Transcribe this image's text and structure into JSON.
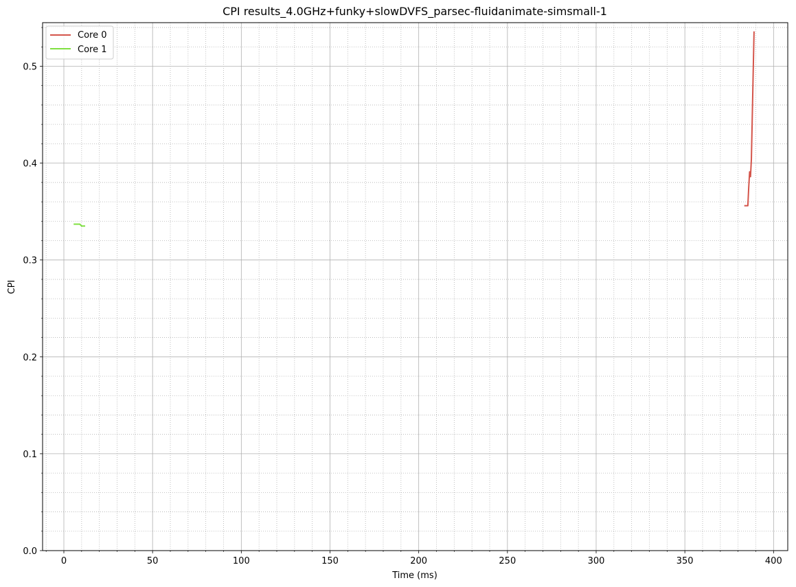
{
  "chart_data": {
    "type": "line",
    "title": "CPI results_4.0GHz+funky+slowDVFS_parsec-fluidanimate-simsmall-1",
    "xlabel": "Time (ms)",
    "ylabel": "CPI",
    "xlim": [
      -12,
      408
    ],
    "ylim": [
      0,
      0.545
    ],
    "xticks": [
      0,
      50,
      100,
      150,
      200,
      250,
      300,
      350,
      400
    ],
    "yticks": [
      0.0,
      0.1,
      0.2,
      0.3,
      0.4,
      0.5
    ],
    "xminor_step": 10,
    "yminor_step": 0.02,
    "grid": true,
    "legend": "top-left",
    "series": [
      {
        "name": "Core 0",
        "color": "#d4544a",
        "x": [
          383.5,
          385.5,
          386.0,
          386.5,
          387.0,
          387.5,
          389.0
        ],
        "y": [
          0.356,
          0.356,
          0.375,
          0.391,
          0.386,
          0.404,
          0.536
        ]
      },
      {
        "name": "Core 1",
        "color": "#7fe040",
        "x": [
          5.5,
          7.0,
          9.0,
          10.0,
          11.0,
          12.0
        ],
        "y": [
          0.337,
          0.337,
          0.337,
          0.335,
          0.335,
          0.335
        ]
      }
    ]
  }
}
